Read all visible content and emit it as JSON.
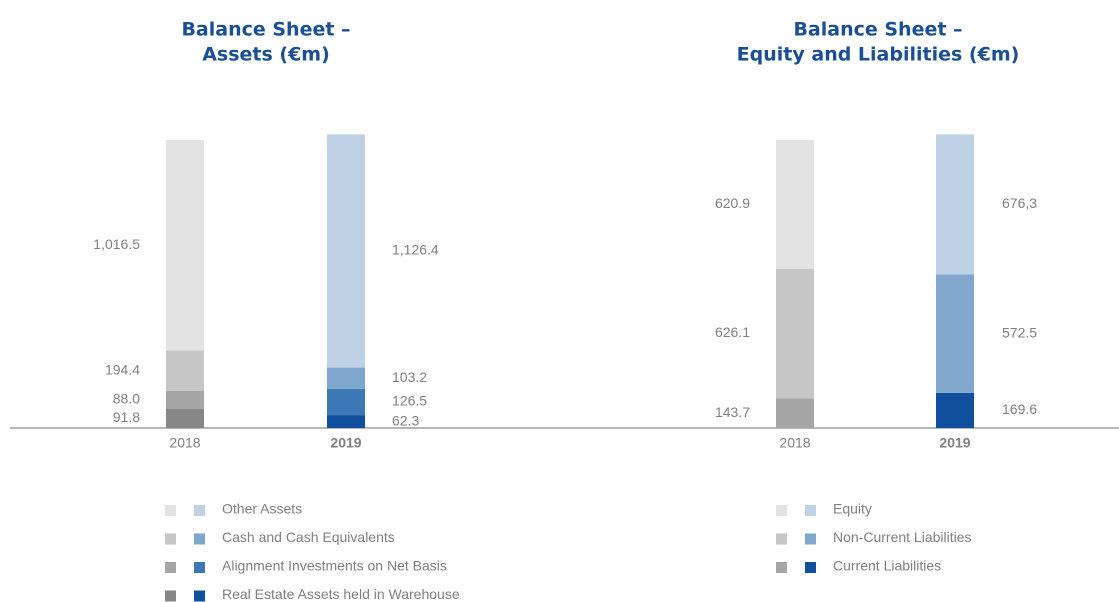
{
  "chart_data": [
    {
      "type": "bar",
      "stacked": true,
      "title": [
        "Balance Sheet –",
        "Assets (€m)"
      ],
      "categories": [
        "2018",
        "2019"
      ],
      "bold_categories": [
        false,
        true
      ],
      "series": [
        {
          "name": "Real Estate Assets held in Warehouse",
          "colors": [
            "#878787",
            "#0f4f9b"
          ],
          "values": [
            91.8,
            62.3
          ],
          "value_labels": [
            "91.8",
            "62.3"
          ]
        },
        {
          "name": "Alignment Investments on Net Basis",
          "colors": [
            "#a6a6a6",
            "#3c78b6"
          ],
          "values": [
            88.0,
            126.5
          ],
          "value_labels": [
            "88.0",
            "126.5"
          ]
        },
        {
          "name": "Cash and Cash Equivalents",
          "colors": [
            "#c6c6c6",
            "#7fa6cd"
          ],
          "values": [
            194.4,
            103.2
          ],
          "value_labels": [
            "194.4",
            "103.2"
          ]
        },
        {
          "name": "Other Assets",
          "colors": [
            "#e3e3e3",
            "#bfd1e4"
          ],
          "values": [
            1016.5,
            1126.4
          ],
          "value_labels": [
            "1,016.5",
            "1,126.4"
          ]
        }
      ]
    },
    {
      "type": "bar",
      "stacked": true,
      "title": [
        "Balance Sheet –",
        "Equity and Liabilities (€m)"
      ],
      "categories": [
        "2018",
        "2019"
      ],
      "bold_categories": [
        false,
        true
      ],
      "series": [
        {
          "name": "Current Liabilities",
          "colors": [
            "#a6a6a6",
            "#0f4f9b"
          ],
          "values": [
            143.7,
            169.6
          ],
          "value_labels": [
            "143.7",
            "169.6"
          ]
        },
        {
          "name": "Non-Current Liabilities",
          "colors": [
            "#c6c6c6",
            "#82a7cc"
          ],
          "values": [
            626.1,
            572.5
          ],
          "value_labels": [
            "626.1",
            "572.5"
          ]
        },
        {
          "name": "Equity",
          "colors": [
            "#e3e3e3",
            "#bfd1e4"
          ],
          "values": [
            620.9,
            676.3
          ],
          "value_labels": [
            "620.9",
            "676,3"
          ]
        }
      ]
    }
  ]
}
